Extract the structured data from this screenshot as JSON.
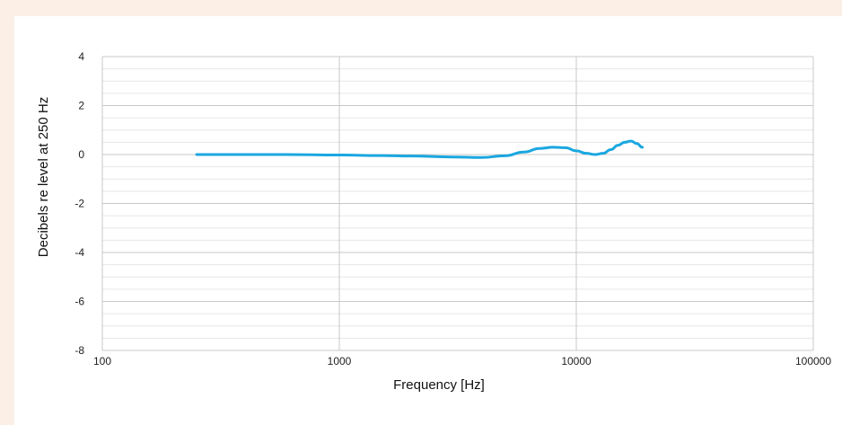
{
  "chart_data": {
    "type": "line",
    "title": "",
    "xlabel": "Frequency [Hz]",
    "ylabel": "Decibels re level at 250 Hz",
    "x_scale": "log",
    "xlim": [
      100,
      100000
    ],
    "ylim": [
      -8,
      4
    ],
    "x_ticks": [
      "100",
      "1000",
      "10000",
      "100000"
    ],
    "y_ticks": [
      "4",
      "2",
      "0",
      "-2",
      "-4",
      "-6",
      "-8"
    ],
    "grid": true,
    "legend": "none",
    "colors": {
      "line": "#1aa7e0",
      "grid_major": "#c8c8c8",
      "grid_minor": "#e6e6e6",
      "background": "#fbefe6"
    },
    "series": [
      {
        "x": [
          250,
          400,
          600,
          1000,
          1500,
          2000,
          3000,
          4000,
          5000,
          6000,
          7000,
          8000,
          9000,
          10000,
          11000,
          12000,
          13000,
          14000,
          15000,
          16000,
          17000,
          18000,
          19000
        ],
        "y": [
          0.0,
          0.0,
          0.0,
          -0.02,
          -0.04,
          -0.06,
          -0.1,
          -0.12,
          -0.05,
          0.1,
          0.25,
          0.3,
          0.28,
          0.15,
          0.05,
          0.0,
          0.05,
          0.2,
          0.38,
          0.5,
          0.55,
          0.45,
          0.3
        ]
      }
    ]
  }
}
